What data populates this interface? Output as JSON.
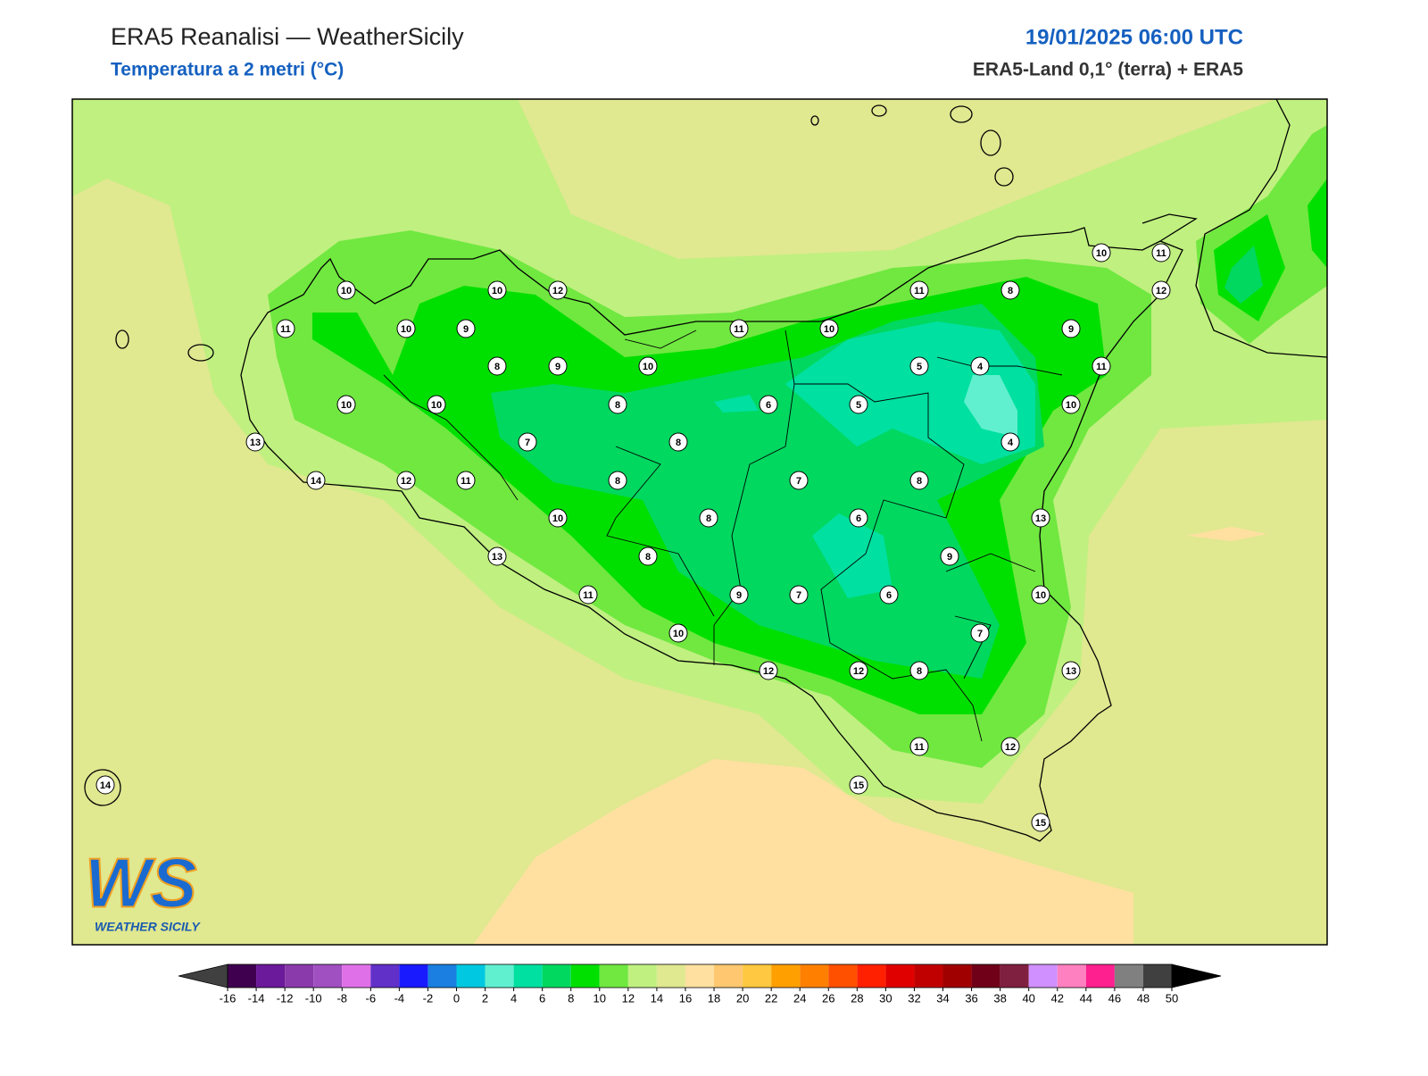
{
  "header": {
    "title": "ERA5 Reanalisi — WeatherSicily",
    "subtitle": "Temperatura a 2 metri (°C)",
    "datetime": "19/01/2025 06:00 UTC",
    "source": "ERA5-Land 0,1° (terra) + ERA5"
  },
  "logo": {
    "initials": "WS",
    "name": "WEATHER SICILY"
  },
  "stations": {
    "values": [
      10,
      10,
      12,
      11,
      10,
      9,
      8,
      9,
      10,
      10,
      10,
      8,
      13,
      7,
      8,
      14,
      12,
      11,
      8,
      10,
      13,
      8,
      11,
      10,
      8,
      11,
      10,
      6,
      7,
      9,
      7,
      12,
      12,
      11,
      8,
      5,
      4,
      5,
      4,
      8,
      6,
      9,
      6,
      7,
      8,
      11,
      12,
      15,
      15,
      10,
      11,
      12,
      9,
      11,
      10,
      13,
      10,
      13,
      14
    ]
  },
  "colorbar": {
    "ticks": [
      -16,
      -14,
      -12,
      -10,
      -8,
      -6,
      -4,
      -2,
      0,
      2,
      4,
      6,
      8,
      10,
      12,
      14,
      16,
      18,
      20,
      22,
      24,
      26,
      28,
      30,
      32,
      34,
      36,
      38,
      40,
      42,
      44,
      46,
      48,
      50
    ],
    "colors": [
      "#3f0050",
      "#6a1a9a",
      "#8a3aaa",
      "#a050c0",
      "#e070e8",
      "#6030c8",
      "#1a1aff",
      "#1a7fe0",
      "#00c8e0",
      "#60f0d0",
      "#00e0a0",
      "#00d860",
      "#00e000",
      "#70e840",
      "#c0f080",
      "#e0e890",
      "#ffe0a0",
      "#ffc870",
      "#ffc840",
      "#ffa000",
      "#ff8000",
      "#ff5000",
      "#ff2000",
      "#e00000",
      "#c00000",
      "#a00000",
      "#700018",
      "#802040",
      "#d090ff",
      "#ff80c0",
      "#ff2090",
      "#808080",
      "#404040"
    ],
    "under_color": "#404040",
    "over_color": "#000000"
  }
}
